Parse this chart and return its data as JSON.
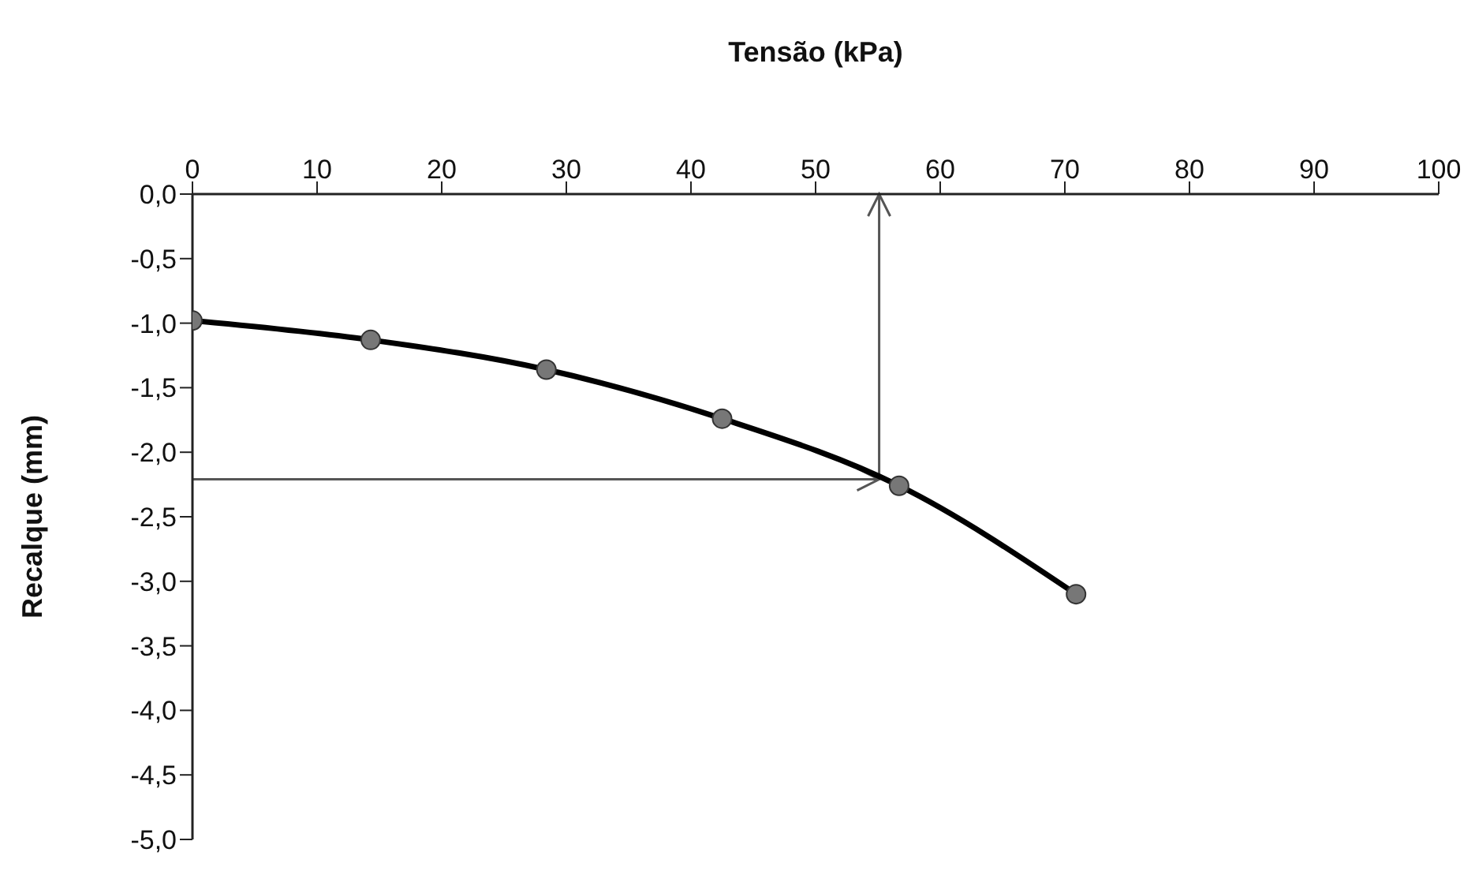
{
  "chart_data": {
    "type": "line",
    "xlabel": "Tensão (kPa)",
    "ylabel": "Recalque (mm)",
    "x": [
      0,
      14.3,
      28.4,
      42.5,
      56.7,
      70.9
    ],
    "series": [
      {
        "color": "#000000",
        "values": [
          -0.98,
          -1.13,
          -1.36,
          -1.74,
          -2.26,
          -3.1
        ]
      }
    ],
    "xlim": [
      0,
      100
    ],
    "xticks": [
      0,
      10,
      20,
      30,
      40,
      50,
      60,
      70,
      80,
      90,
      100
    ],
    "ylim": [
      -5,
      0
    ],
    "yticks": [
      {
        "value": 0,
        "label": "0,0"
      },
      {
        "value": -0.5,
        "label": "-0,5"
      },
      {
        "value": -1,
        "label": "-1,0"
      },
      {
        "value": -1.5,
        "label": "-1,5"
      },
      {
        "value": -2,
        "label": "-2,0"
      },
      {
        "value": -2.5,
        "label": "-2,5"
      },
      {
        "value": -3,
        "label": "-3,0"
      },
      {
        "value": -3.5,
        "label": "-3,5"
      },
      {
        "value": -4,
        "label": "-4,0"
      },
      {
        "value": -4.5,
        "label": "-4,5"
      },
      {
        "value": -5,
        "label": "-5,0"
      }
    ],
    "ref_lines": [
      {
        "axis": "y",
        "value": -2.21,
        "color": "#555555"
      },
      {
        "axis": "x",
        "value": 55.1,
        "color": "#555555"
      }
    ],
    "grid": false,
    "legend": false,
    "marker": "circle",
    "line_style": "solid"
  }
}
